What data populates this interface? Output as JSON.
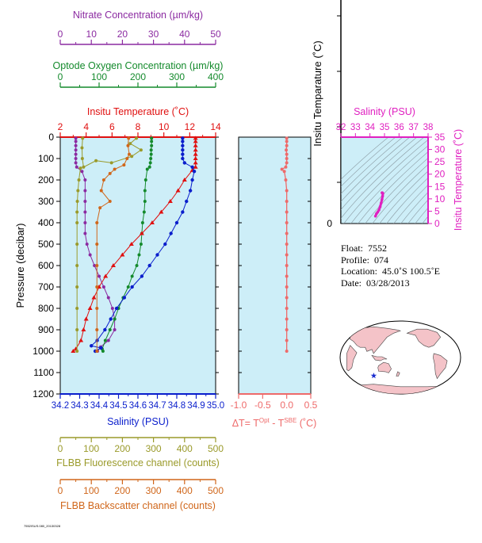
{
  "colors": {
    "plot_bg": "#cdeef8",
    "nitrate": "#8b2aa1",
    "oxygen": "#148a2c",
    "temperature": "#e01010",
    "salinity": "#0a1ecc",
    "fluorescence": "#9a9a2a",
    "backscatter": "#d0661a",
    "delta_t": "#ee6a6a",
    "ts": "#e020c0",
    "map_land": "#f4c3c8"
  },
  "info": {
    "float_label": "Float:",
    "float": "7552",
    "profile_label": "Profile:",
    "profile": "074",
    "location_label": "Location:",
    "location": "45.0˚S  100.5˚E",
    "date_label": "Date:",
    "date": "03/28/2013"
  },
  "footer_text": "7552ISUS.080_20130328",
  "chart_data": [
    {
      "type": "line",
      "id": "main-profiles",
      "ylabel": "Pressure (decibar)",
      "ylim": [
        1200,
        0
      ],
      "yticks": [
        0,
        100,
        200,
        300,
        400,
        500,
        600,
        700,
        800,
        900,
        1000,
        1100,
        1200
      ],
      "axes": [
        {
          "key": "nitrate",
          "label": "Nitrate Concentration (µm/kg)",
          "range": [
            0,
            50
          ],
          "ticks": [
            0,
            10,
            20,
            30,
            40,
            50
          ]
        },
        {
          "key": "oxygen",
          "label": "Optode Oxygen Concentration (µm/kg)",
          "range": [
            0,
            400
          ],
          "ticks": [
            0,
            100,
            200,
            300,
            400
          ]
        },
        {
          "key": "temperature",
          "label": "Insitu Temperature (˚C)",
          "range": [
            2,
            14
          ],
          "ticks": [
            2,
            4,
            6,
            8,
            10,
            12,
            14
          ]
        },
        {
          "key": "salinity",
          "label": "Salinity (PSU)",
          "range": [
            34.2,
            35.0
          ],
          "ticks": [
            34.2,
            34.3,
            34.4,
            34.5,
            34.6,
            34.7,
            34.8,
            34.9,
            35.0
          ],
          "tick_labels": [
            "34.2",
            "34.3",
            "34.4",
            "34.5",
            "34.6",
            "34.7",
            "34.8",
            "34.9",
            "35.0"
          ]
        },
        {
          "key": "fluorescence",
          "label": "FLBB Fluorescence channel (counts)",
          "range": [
            0,
            500
          ],
          "ticks": [
            0,
            100,
            200,
            300,
            400,
            500
          ]
        },
        {
          "key": "backscatter",
          "label": "FLBB Backscatter channel (counts)",
          "range": [
            0,
            500
          ],
          "ticks": [
            0,
            100,
            200,
            300,
            400,
            500
          ]
        }
      ],
      "series": [
        {
          "key": "nitrate",
          "points": [
            [
              5,
              5
            ],
            [
              5,
              20
            ],
            [
              5,
              40
            ],
            [
              5,
              60
            ],
            [
              5,
              80
            ],
            [
              5,
              100
            ],
            [
              5,
              120
            ],
            [
              5.3,
              140
            ],
            [
              7,
              160
            ],
            [
              8,
              200
            ],
            [
              8,
              250
            ],
            [
              8,
              300
            ],
            [
              8,
              350
            ],
            [
              8,
              400
            ],
            [
              8,
              450
            ],
            [
              8.6,
              500
            ],
            [
              9.6,
              550
            ],
            [
              11,
              600
            ],
            [
              12.5,
              650
            ],
            [
              14,
              700
            ],
            [
              15.5,
              750
            ],
            [
              16.8,
              800
            ],
            [
              17.5,
              850
            ],
            [
              17.5,
              900
            ],
            [
              15.5,
              950
            ],
            [
              13,
              980
            ],
            [
              12,
              1000
            ]
          ]
        },
        {
          "key": "oxygen",
          "points": [
            [
              235,
              5
            ],
            [
              235,
              20
            ],
            [
              235,
              40
            ],
            [
              234,
              60
            ],
            [
              234,
              80
            ],
            [
              233,
              100
            ],
            [
              232,
              120
            ],
            [
              230,
              140
            ],
            [
              224,
              150
            ],
            [
              220,
              200
            ],
            [
              218,
              250
            ],
            [
              218,
              300
            ],
            [
              216,
              350
            ],
            [
              212,
              400
            ],
            [
              210,
              450
            ],
            [
              208,
              500
            ],
            [
              203,
              550
            ],
            [
              197,
              600
            ],
            [
              185,
              650
            ],
            [
              175,
              700
            ],
            [
              162,
              750
            ],
            [
              150,
              800
            ],
            [
              140,
              850
            ],
            [
              128,
              900
            ],
            [
              116,
              950
            ],
            [
              108,
              990
            ],
            [
              110,
              1000
            ]
          ]
        },
        {
          "key": "temperature",
          "points": [
            [
              12.45,
              5
            ],
            [
              12.45,
              20
            ],
            [
              12.45,
              40
            ],
            [
              12.45,
              60
            ],
            [
              12.45,
              80
            ],
            [
              12.45,
              100
            ],
            [
              12.45,
              120
            ],
            [
              12.45,
              140
            ],
            [
              12.2,
              155
            ],
            [
              11.6,
              200
            ],
            [
              11.1,
              250
            ],
            [
              10.5,
              300
            ],
            [
              9.8,
              350
            ],
            [
              9.1,
              400
            ],
            [
              8.3,
              450
            ],
            [
              7.5,
              500
            ],
            [
              6.8,
              550
            ],
            [
              6.1,
              600
            ],
            [
              5.5,
              650
            ],
            [
              5.0,
              700
            ],
            [
              4.6,
              750
            ],
            [
              4.3,
              800
            ],
            [
              4.0,
              850
            ],
            [
              3.8,
              900
            ],
            [
              3.6,
              950
            ],
            [
              3.2,
              990
            ],
            [
              3.0,
              1000
            ]
          ]
        },
        {
          "key": "salinity",
          "points": [
            [
              34.83,
              5
            ],
            [
              34.83,
              20
            ],
            [
              34.83,
              40
            ],
            [
              34.83,
              60
            ],
            [
              34.83,
              80
            ],
            [
              34.83,
              100
            ],
            [
              34.84,
              120
            ],
            [
              34.88,
              140
            ],
            [
              34.89,
              160
            ],
            [
              34.88,
              200
            ],
            [
              34.87,
              250
            ],
            [
              34.85,
              300
            ],
            [
              34.83,
              350
            ],
            [
              34.8,
              400
            ],
            [
              34.77,
              450
            ],
            [
              34.74,
              500
            ],
            [
              34.7,
              550
            ],
            [
              34.66,
              600
            ],
            [
              34.62,
              650
            ],
            [
              34.57,
              700
            ],
            [
              34.53,
              750
            ],
            [
              34.49,
              800
            ],
            [
              34.46,
              850
            ],
            [
              34.43,
              900
            ],
            [
              34.39,
              950
            ],
            [
              34.36,
              975
            ],
            [
              34.41,
              985
            ],
            [
              34.38,
              1000
            ]
          ]
        },
        {
          "key": "fluorescence",
          "points": [
            [
              72,
              5
            ],
            [
              70,
              50
            ],
            [
              71,
              100
            ],
            [
              75,
              140
            ],
            [
              115,
              110
            ],
            [
              165,
              120
            ],
            [
              230,
              90
            ],
            [
              260,
              60
            ],
            [
              225,
              30
            ],
            [
              245,
              5
            ]
          ]
        },
        {
          "key": "fluorescence_deep",
          "points": [
            [
              65,
              145
            ],
            [
              60,
              200
            ],
            [
              57,
              250
            ],
            [
              55,
              300
            ],
            [
              54,
              350
            ],
            [
              54,
              400
            ],
            [
              54,
              500
            ],
            [
              54,
              600
            ],
            [
              54,
              700
            ],
            [
              54,
              800
            ],
            [
              54,
              900
            ],
            [
              54,
              1000
            ]
          ]
        },
        {
          "key": "backscatter",
          "points": [
            [
              220,
              5
            ],
            [
              218,
              40
            ],
            [
              222,
              80
            ],
            [
              215,
              100
            ],
            [
              205,
              130
            ],
            [
              175,
              150
            ],
            [
              160,
              170
            ],
            [
              140,
              200
            ],
            [
              132,
              250
            ],
            [
              160,
              300
            ],
            [
              128,
              330
            ],
            [
              118,
              400
            ],
            [
              118,
              500
            ],
            [
              118,
              600
            ],
            [
              118,
              700
            ],
            [
              118,
              800
            ],
            [
              118,
              900
            ],
            [
              118,
              1000
            ]
          ]
        }
      ]
    },
    {
      "type": "line",
      "id": "delta-t",
      "xlabel": "ΔT= T",
      "xlabel_sup1": "Opt",
      "xlabel_mid": " - T",
      "xlabel_sup2": "SBE",
      "xlabel_end": " (˚C)",
      "xlim": [
        -1.0,
        0.5
      ],
      "ylim": [
        1200,
        0
      ],
      "ticks": [
        -1.0,
        -0.5,
        0.0,
        0.5
      ],
      "tick_labels": [
        "-1.0",
        "-0.5",
        "0.0",
        "0.5"
      ],
      "points": [
        [
          0,
          5
        ],
        [
          0,
          20
        ],
        [
          0,
          40
        ],
        [
          -0.01,
          60
        ],
        [
          0,
          80
        ],
        [
          0,
          100
        ],
        [
          0,
          120
        ],
        [
          -0.02,
          140
        ],
        [
          -0.1,
          150
        ],
        [
          -0.05,
          160
        ],
        [
          -0.02,
          200
        ],
        [
          0,
          250
        ],
        [
          0,
          300
        ],
        [
          0,
          350
        ],
        [
          0,
          400
        ],
        [
          0,
          450
        ],
        [
          0,
          500
        ],
        [
          0,
          550
        ],
        [
          0,
          600
        ],
        [
          0,
          650
        ],
        [
          0,
          700
        ],
        [
          0,
          750
        ],
        [
          0,
          800
        ],
        [
          0,
          850
        ],
        [
          0,
          900
        ],
        [
          0,
          950
        ],
        [
          0,
          1000
        ]
      ]
    },
    {
      "type": "scatter",
      "id": "ts-diagram",
      "xlabel": "Salinity (PSU)",
      "ylabel": "Insitu Temperature (˚C)",
      "xlim": [
        32,
        38
      ],
      "ylim": [
        0,
        35
      ],
      "xticks": [
        32,
        33,
        34,
        35,
        36,
        37,
        38
      ],
      "yticks": [
        0,
        5,
        10,
        15,
        20,
        25,
        30,
        35
      ],
      "points": [
        [
          34.38,
          3.0
        ],
        [
          34.45,
          4.0
        ],
        [
          34.53,
          4.6
        ],
        [
          34.62,
          5.5
        ],
        [
          34.7,
          6.8
        ],
        [
          34.77,
          8.3
        ],
        [
          34.83,
          9.8
        ],
        [
          34.87,
          11.1
        ],
        [
          34.89,
          12.2
        ],
        [
          34.85,
          12.45
        ],
        [
          34.83,
          12.45
        ]
      ]
    },
    {
      "type": "line",
      "id": "upper-temperature-axis",
      "ylabel": "Insitu Temparature (˚C)",
      "zero_label": "0"
    },
    {
      "type": "map",
      "id": "location-map",
      "marker": {
        "lat": -45.0,
        "lon": 100.5
      }
    }
  ]
}
